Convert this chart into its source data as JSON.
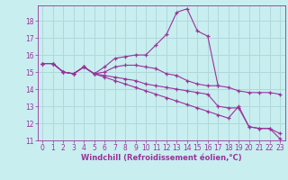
{
  "background_color": "#c8eef0",
  "grid_color": "#b0d8da",
  "line_color": "#993399",
  "xlabel": "Windchill (Refroidissement éolien,°C)",
  "xlim": [
    -0.5,
    23.5
  ],
  "ylim": [
    11,
    18.9
  ],
  "yticks": [
    11,
    12,
    13,
    14,
    15,
    16,
    17,
    18
  ],
  "xticks": [
    0,
    1,
    2,
    3,
    4,
    5,
    6,
    7,
    8,
    9,
    10,
    11,
    12,
    13,
    14,
    15,
    16,
    17,
    18,
    19,
    20,
    21,
    22,
    23
  ],
  "series": [
    {
      "x": [
        0,
        1,
        2,
        3,
        4,
        5,
        6,
        7,
        8,
        9,
        10,
        11,
        12,
        13,
        14,
        15,
        16,
        17
      ],
      "y": [
        15.5,
        15.5,
        15.0,
        14.9,
        15.3,
        14.9,
        15.3,
        15.8,
        15.9,
        16.0,
        16.0,
        16.6,
        17.2,
        18.5,
        18.7,
        17.4,
        17.1,
        14.2
      ]
    },
    {
      "x": [
        0,
        1,
        2,
        3,
        4,
        5,
        6,
        7,
        8,
        9,
        10,
        11,
        12,
        13,
        14,
        15,
        16,
        17,
        18,
        19,
        20,
        21,
        22,
        23
      ],
      "y": [
        15.5,
        15.5,
        15.0,
        14.9,
        15.3,
        14.9,
        15.0,
        15.3,
        15.4,
        15.4,
        15.3,
        15.2,
        14.9,
        14.8,
        14.5,
        14.3,
        14.2,
        14.2,
        14.1,
        13.9,
        13.8,
        13.8,
        13.8,
        13.7
      ]
    },
    {
      "x": [
        0,
        1,
        2,
        3,
        4,
        5,
        6,
        7,
        8,
        9,
        10,
        11,
        12,
        13,
        14,
        15,
        16,
        17,
        18,
        19,
        20,
        21,
        22,
        23
      ],
      "y": [
        15.5,
        15.5,
        15.0,
        14.9,
        15.3,
        14.9,
        14.8,
        14.7,
        14.6,
        14.5,
        14.3,
        14.2,
        14.1,
        14.0,
        13.9,
        13.8,
        13.7,
        13.0,
        12.9,
        12.9,
        11.8,
        11.7,
        11.7,
        11.4
      ]
    },
    {
      "x": [
        0,
        1,
        2,
        3,
        4,
        5,
        6,
        7,
        8,
        9,
        10,
        11,
        12,
        13,
        14,
        15,
        16,
        17,
        18,
        19,
        20,
        21,
        22,
        23
      ],
      "y": [
        15.5,
        15.5,
        15.0,
        14.9,
        15.3,
        14.9,
        14.7,
        14.5,
        14.3,
        14.1,
        13.9,
        13.7,
        13.5,
        13.3,
        13.1,
        12.9,
        12.7,
        12.5,
        12.3,
        13.0,
        11.8,
        11.7,
        11.7,
        11.1
      ]
    }
  ]
}
